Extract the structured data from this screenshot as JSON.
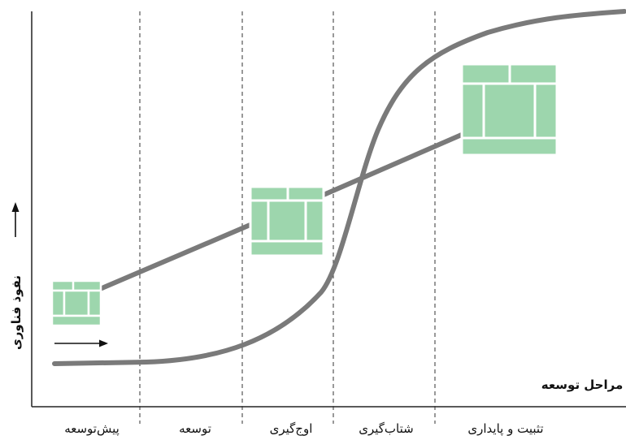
{
  "x_axis_title": "مراحل توسعه",
  "y_axis_title": "نفوذ فناوری",
  "stages": [
    {
      "label": "پیش‌توسعه"
    },
    {
      "label": "توسعه"
    },
    {
      "label": "اوج‌گیری"
    },
    {
      "label": "شتاب‌گیری"
    },
    {
      "label": "تثبیت و پایداری"
    }
  ],
  "colors": {
    "curve": "#7a7a7a",
    "block": "#9dd6ad",
    "axis": "#222222",
    "divider": "#333333"
  },
  "icons": [
    "arrow-right-icon",
    "arrow-up-icon",
    "block-icon"
  ]
}
